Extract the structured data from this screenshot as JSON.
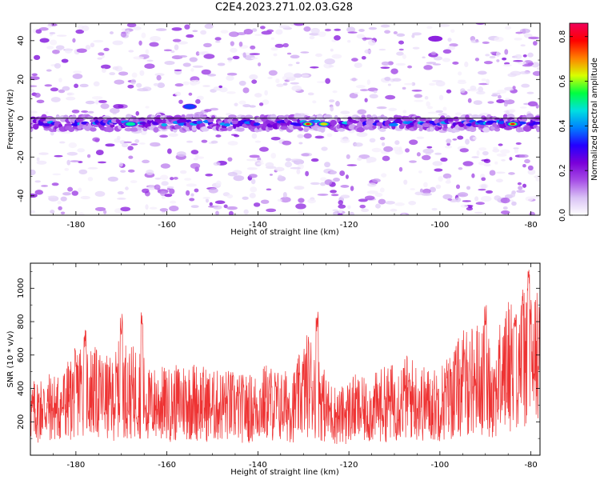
{
  "figure": {
    "title": "C2E4.2023.271.02.03.G28"
  },
  "chart_data": [
    {
      "type": "heatmap",
      "title": "C2E4.2023.271.02.03.G28",
      "xlabel": "Height of straight line (km)",
      "ylabel": "Frequency (Hz)",
      "xlim": [
        -190,
        -78
      ],
      "ylim": [
        -50,
        49
      ],
      "xticks": [
        -180,
        -160,
        -140,
        -120,
        -100,
        -80
      ],
      "yticks": [
        -40,
        -20,
        0,
        20,
        40
      ],
      "colorbar": {
        "label": "Normalized spectral amplitude",
        "range": [
          0,
          0.86
        ],
        "ticks": [
          0,
          0.2,
          0.4,
          0.6,
          0.8
        ],
        "tick_labels": [
          "0.0",
          "0.2",
          "0.4",
          "0.6",
          "0.8"
        ],
        "colormap": [
          "#ffffff",
          "#d9c2f5",
          "#a64de6",
          "#7a00d9",
          "#2400ff",
          "#0080ff",
          "#00e0e0",
          "#00ff40",
          "#d8ff00",
          "#ff8000",
          "#ff0000",
          "#f0005a"
        ]
      },
      "dominant_band": {
        "center_hz": -2.5,
        "half_width_hz": 4,
        "peak_amplitude": 0.86
      },
      "peaks": [
        {
          "x": -168,
          "y": -3,
          "value": 0.55
        },
        {
          "x": -129,
          "y": -3,
          "value": 0.86
        },
        {
          "x": -125.5,
          "y": -3,
          "value": 0.7
        },
        {
          "x": -84,
          "y": -3,
          "value": 0.82
        },
        {
          "x": -155,
          "y": 6,
          "value": 0.35
        },
        {
          "x": -101,
          "y": 41,
          "value": 0.25
        }
      ]
    },
    {
      "type": "line",
      "xlabel": "Height of straight line (km)",
      "ylabel": "SNR (10 * v/v)",
      "xlim": [
        -190,
        -78
      ],
      "ylim": [
        0,
        1150
      ],
      "xticks": [
        -180,
        -160,
        -140,
        -120,
        -100,
        -80
      ],
      "yticks": [
        200,
        400,
        600,
        800,
        1000
      ],
      "color": "#ee3333",
      "series": [
        {
          "x": [
            -190,
            -187,
            -184,
            -181,
            -179,
            -177,
            -175,
            -172,
            -170,
            -168,
            -166,
            -164,
            -162,
            -159,
            -156,
            -153,
            -150,
            -147,
            -144,
            -141,
            -138,
            -135,
            -132,
            -129,
            -127,
            -125,
            -122,
            -119,
            -116,
            -113,
            -110,
            -107,
            -104,
            -101,
            -98,
            -95,
            -92,
            -90,
            -88,
            -86,
            -84,
            -82,
            -80,
            -78
          ],
          "values": [
            250,
            290,
            280,
            340,
            410,
            390,
            360,
            330,
            420,
            370,
            390,
            300,
            310,
            300,
            330,
            320,
            290,
            300,
            280,
            280,
            320,
            290,
            300,
            430,
            400,
            270,
            230,
            280,
            260,
            300,
            320,
            350,
            310,
            300,
            350,
            430,
            460,
            450,
            380,
            500,
            580,
            600,
            560,
            600
          ],
          "peaks": [
            {
              "x": -178,
              "y": 760
            },
            {
              "x": -170,
              "y": 850
            },
            {
              "x": -165.5,
              "y": 860
            },
            {
              "x": -127,
              "y": 870
            },
            {
              "x": -90,
              "y": 900
            },
            {
              "x": -83.5,
              "y": 850
            },
            {
              "x": -80.5,
              "y": 1150
            }
          ]
        }
      ]
    }
  ]
}
